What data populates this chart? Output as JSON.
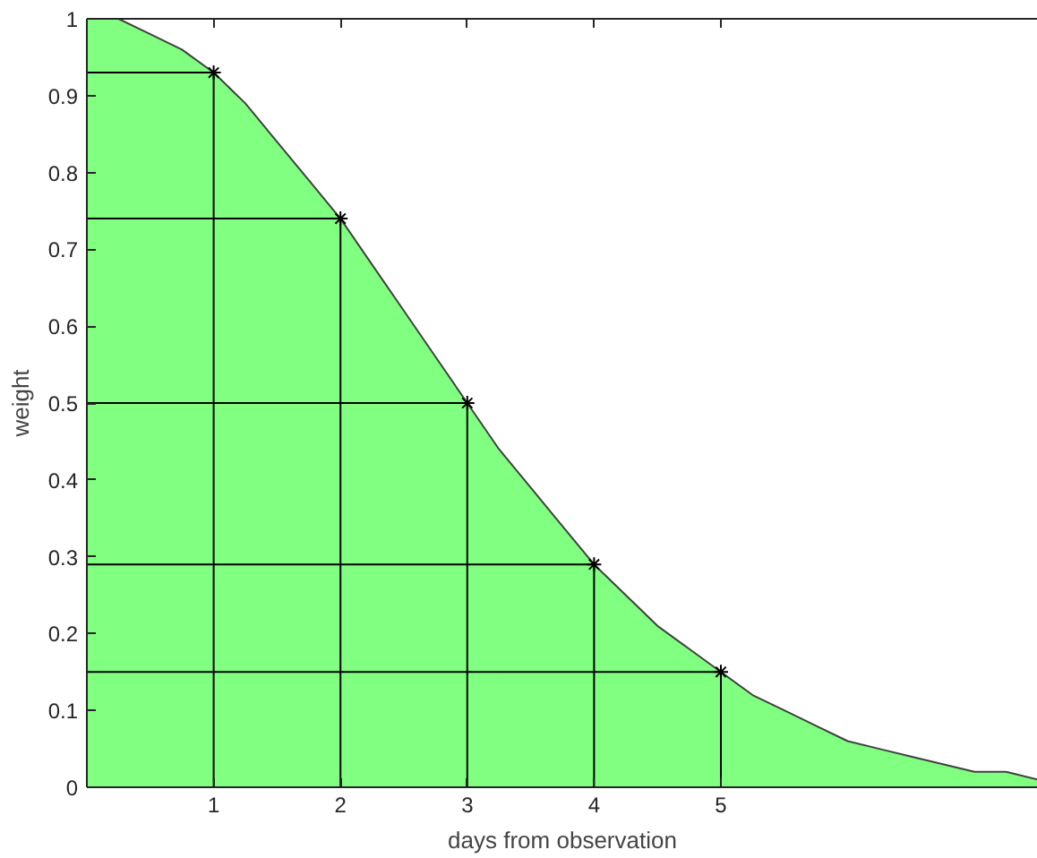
{
  "chart_data": {
    "type": "area",
    "xlabel": "days from observation",
    "ylabel": "weight",
    "xlim": [
      0,
      7.5
    ],
    "ylim": [
      0,
      1
    ],
    "xticks": [
      1,
      2,
      3,
      4,
      5
    ],
    "yticks": [
      0,
      0.1,
      0.2,
      0.3,
      0.4,
      0.5,
      0.6,
      0.7,
      0.8,
      0.9,
      1
    ],
    "grid": false,
    "series": [
      {
        "color": "#80ff80",
        "x": [
          0,
          0.25,
          0.5,
          0.75,
          1,
          1.25,
          1.5,
          1.75,
          2,
          2.25,
          2.5,
          2.75,
          3,
          3.25,
          3.5,
          3.75,
          4,
          4.25,
          4.5,
          4.75,
          5,
          5.25,
          5.5,
          5.75,
          6,
          6.25,
          6.5,
          6.75,
          7,
          7.25,
          7.5
        ],
        "values": [
          1,
          1,
          0.98,
          0.96,
          0.93,
          0.89,
          0.84,
          0.79,
          0.74,
          0.68,
          0.62,
          0.56,
          0.5,
          0.44,
          0.39,
          0.34,
          0.29,
          0.25,
          0.21,
          0.18,
          0.15,
          0.12,
          0.1,
          0.08,
          0.06,
          0.05,
          0.04,
          0.03,
          0.02,
          0.02,
          0.01
        ]
      },
      {
        "type": "line",
        "color": "#000000",
        "x": [
          0,
          1,
          1
        ],
        "values": [
          0.93,
          0.93,
          0
        ]
      },
      {
        "type": "line",
        "color": "#000000",
        "x": [
          0,
          2,
          2
        ],
        "values": [
          0.74,
          0.74,
          0
        ]
      },
      {
        "type": "line",
        "color": "#000000",
        "x": [
          0,
          3,
          3
        ],
        "values": [
          0.5,
          0.5,
          0
        ]
      },
      {
        "type": "line",
        "color": "#000000",
        "x": [
          0,
          4,
          4
        ],
        "values": [
          0.29,
          0.29,
          0
        ]
      },
      {
        "type": "line",
        "color": "#000000",
        "x": [
          0,
          5,
          5
        ],
        "values": [
          0.15,
          0.15,
          0
        ]
      },
      {
        "type": "scatter",
        "color": "#000000",
        "marker": "cross",
        "x": [
          1,
          2,
          3,
          4,
          5
        ],
        "values": [
          0.93,
          0.74,
          0.5,
          0.29,
          0.15
        ]
      }
    ]
  }
}
